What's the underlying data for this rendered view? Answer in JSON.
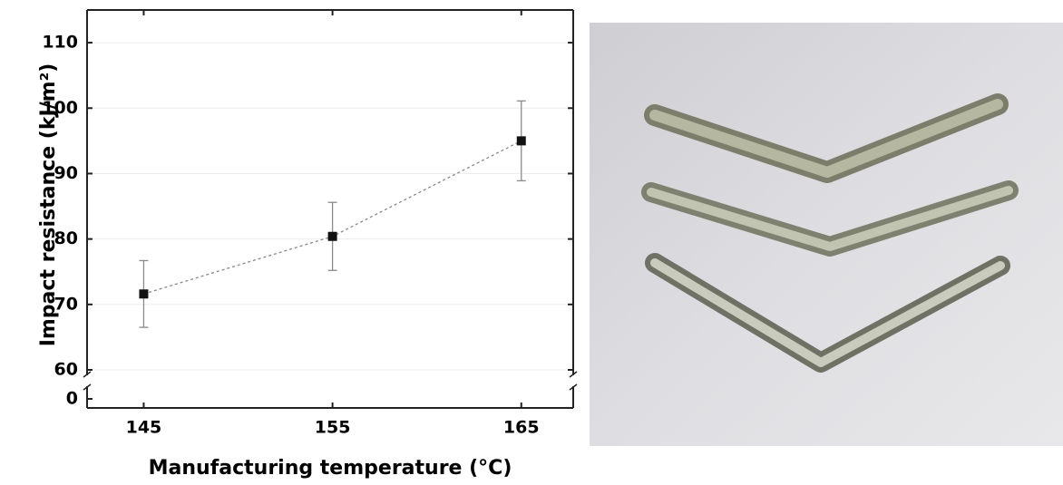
{
  "chart_data": {
    "type": "scatter",
    "xlabel": "Manufacturing temperature (°C)",
    "ylabel": "Impact resistance (kJ/m²)",
    "x": [
      145,
      155,
      165
    ],
    "values": [
      71.6,
      80.4,
      95
    ],
    "errors": [
      5.1,
      5.2,
      6.1
    ],
    "color": "#111111",
    "line_color": "#888888",
    "error_color": "#8a8a8a",
    "xlim": [
      142,
      167.75
    ],
    "xticks": [
      145,
      155,
      165
    ],
    "ylim": [
      60,
      115
    ],
    "yticks": [
      60,
      70,
      80,
      90,
      100,
      110
    ],
    "y_break": true,
    "y_lower_ticks": [
      0
    ],
    "grid": true
  }
}
